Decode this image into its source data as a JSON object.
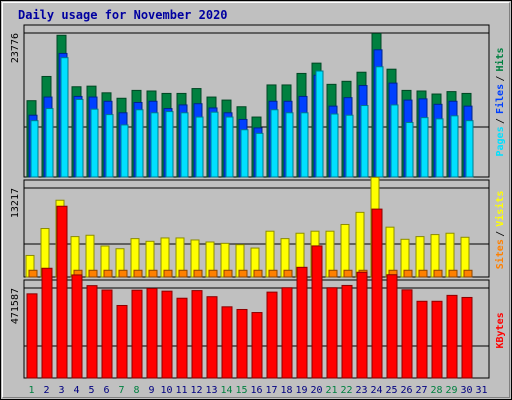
{
  "title": "Daily usage for November 2020",
  "colors": {
    "hits": "#008040",
    "files": "#0040ff",
    "pages": "#00e0ff",
    "visits": "#ffff00",
    "sites": "#ff8000",
    "kbytes": "#ff0000",
    "title": "#0000a0",
    "weekend_day": "#008040",
    "weekday": "#000080"
  },
  "chart_data": [
    {
      "type": "bar",
      "panel": "hits-files-pages",
      "y_tick_label": "23776",
      "y_tick_value": 23776,
      "right_labels": [
        "Pages",
        "Files",
        "Hits"
      ],
      "categories": [
        "1",
        "2",
        "3",
        "4",
        "5",
        "6",
        "7",
        "8",
        "9",
        "10",
        "11",
        "12",
        "13",
        "14",
        "15",
        "16",
        "17",
        "18",
        "19",
        "20",
        "21",
        "22",
        "23",
        "24",
        "25",
        "26",
        "27",
        "28",
        "29",
        "30"
      ],
      "series": [
        {
          "name": "Hits",
          "values": [
            12600,
            16600,
            23400,
            14900,
            15000,
            13900,
            13000,
            14300,
            14200,
            13800,
            13800,
            14600,
            13200,
            12700,
            11600,
            9900,
            15200,
            15200,
            17100,
            18800,
            15300,
            15800,
            17300,
            23700,
            17800,
            14300,
            14200,
            13700,
            14100,
            13800
          ]
        },
        {
          "name": "Files",
          "values": [
            10200,
            13200,
            20400,
            13300,
            13200,
            12500,
            10600,
            12300,
            12500,
            11300,
            11900,
            12100,
            11400,
            10600,
            9500,
            8100,
            12500,
            12500,
            13300,
            16800,
            11700,
            13100,
            15100,
            21000,
            15500,
            12700,
            12900,
            12000,
            12500,
            11700
          ]
        },
        {
          "name": "Pages",
          "values": [
            9300,
            11300,
            19700,
            12800,
            11200,
            10300,
            8600,
            11100,
            10600,
            10800,
            10600,
            9900,
            10700,
            9900,
            7800,
            7200,
            11100,
            10600,
            10600,
            17500,
            10400,
            10200,
            11800,
            18200,
            11900,
            9000,
            9800,
            9600,
            10100,
            9300
          ]
        }
      ]
    },
    {
      "type": "bar",
      "panel": "visits-sites",
      "y_tick_label": "13217",
      "y_tick_value": 13217,
      "right_labels": [
        "Sites",
        "Visits"
      ],
      "categories": [
        "1",
        "2",
        "3",
        "4",
        "5",
        "6",
        "7",
        "8",
        "9",
        "10",
        "11",
        "12",
        "13",
        "14",
        "15",
        "16",
        "17",
        "18",
        "19",
        "20",
        "21",
        "22",
        "23",
        "24",
        "25",
        "26",
        "27",
        "28",
        "29",
        "30"
      ],
      "series": [
        {
          "name": "Visits",
          "values": [
            3200,
            7200,
            11400,
            6000,
            6200,
            4600,
            4200,
            5700,
            5300,
            5800,
            5800,
            5500,
            5200,
            5000,
            4800,
            4300,
            6800,
            5700,
            6500,
            6800,
            6800,
            7800,
            9600,
            14800,
            7400,
            5600,
            6000,
            6300,
            6500,
            5900
          ]
        },
        {
          "name": "Sites",
          "values": [
            1000,
            1000,
            1000,
            1000,
            1000,
            1000,
            1000,
            1000,
            1000,
            1000,
            1000,
            1000,
            1000,
            1000,
            1000,
            1000,
            1000,
            1000,
            1000,
            1000,
            1000,
            1000,
            1000,
            1000,
            1000,
            1000,
            1000,
            1000,
            1000,
            1000
          ]
        }
      ]
    },
    {
      "type": "bar",
      "panel": "kbytes",
      "y_tick_label": "471587",
      "y_tick_value": 471587,
      "right_labels": [
        "KBytes"
      ],
      "categories": [
        "1",
        "2",
        "3",
        "4",
        "5",
        "6",
        "7",
        "8",
        "9",
        "10",
        "11",
        "12",
        "13",
        "14",
        "15",
        "16",
        "17",
        "18",
        "19",
        "20",
        "21",
        "22",
        "23",
        "24",
        "25",
        "26",
        "27",
        "28",
        "29",
        "30"
      ],
      "series": [
        {
          "name": "KBytes",
          "values": [
            441000,
            575000,
            900000,
            540000,
            484000,
            461000,
            380000,
            460000,
            469000,
            455000,
            418000,
            458000,
            426000,
            373000,
            359000,
            343000,
            450000,
            473000,
            580000,
            692000,
            473000,
            485000,
            554000,
            885000,
            541000,
            462000,
            402000,
            402000,
            433000,
            422000
          ]
        }
      ]
    }
  ],
  "x_labels": [
    "1",
    "2",
    "3",
    "4",
    "5",
    "6",
    "7",
    "8",
    "9",
    "10",
    "11",
    "12",
    "13",
    "14",
    "15",
    "16",
    "17",
    "18",
    "19",
    "20",
    "21",
    "22",
    "23",
    "24",
    "25",
    "26",
    "27",
    "28",
    "29",
    "30",
    "31"
  ],
  "weekend_days": [
    "1",
    "7",
    "8",
    "14",
    "15",
    "21",
    "22",
    "28",
    "29"
  ]
}
